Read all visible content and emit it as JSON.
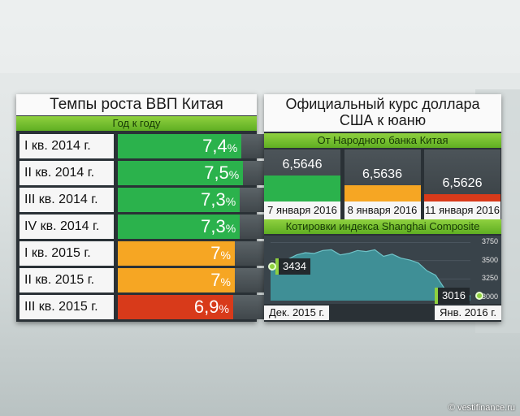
{
  "gdp_panel": {
    "title": "Темпы роста ВВП Китая",
    "subtitle": "Год к году",
    "unit": "%"
  },
  "rate_panel": {
    "title": "Официальный курс доллара США к юаню",
    "subtitle": "От Народного банка Китая",
    "index_title": "Котировки индекса Shanghai Composite",
    "index_start_label": "Дек. 2015 г.",
    "index_end_label": "Янв. 2016 г.",
    "index_start_value": "3434",
    "index_end_value": "3016"
  },
  "credit": "© vestifinance.ru",
  "colors": {
    "green": "#2bb24c",
    "orange": "#f6a623",
    "red": "#d83a1a",
    "accent": "#8fd13f"
  },
  "chart_data": [
    {
      "type": "bar",
      "title": "Темпы роста ВВП Китая",
      "subtitle": "Год к году",
      "categories": [
        "I кв. 2014 г.",
        "II кв. 2014 г.",
        "III кв. 2014 г.",
        "IV кв. 2014 г.",
        "I кв. 2015 г.",
        "II кв. 2015 г.",
        "III кв. 2015 г."
      ],
      "values": [
        7.4,
        7.5,
        7.3,
        7.3,
        7,
        7,
        6.9
      ],
      "labels": [
        "7,4",
        "7,5",
        "7,3",
        "7,3",
        "7",
        "7",
        "6,9"
      ],
      "bar_colors": [
        "#2bb24c",
        "#2bb24c",
        "#2bb24c",
        "#2bb24c",
        "#f6a623",
        "#f6a623",
        "#d83a1a"
      ],
      "xlim": [
        0,
        8.8
      ]
    },
    {
      "type": "bar",
      "title": "Официальный курс доллара США к юаню",
      "subtitle": "От Народного банка Китая",
      "categories": [
        "7 января 2016 г.",
        "8 января 2016 г.",
        "11 января 2016 г."
      ],
      "values": [
        6.5646,
        6.5636,
        6.5626
      ],
      "labels": [
        "6,5646",
        "6,5636",
        "6,5626"
      ],
      "bar_colors": [
        "#2bb24c",
        "#f6a623",
        "#d83a1a"
      ],
      "ylim": [
        6.5618,
        6.5648
      ]
    },
    {
      "type": "area",
      "title": "Котировки индекса Shanghai Composite",
      "x": [
        0,
        1,
        2,
        3,
        4,
        5,
        6,
        7,
        8,
        9,
        10,
        11,
        12,
        13,
        14,
        15,
        16,
        17,
        18,
        19,
        20,
        21,
        22,
        23
      ],
      "values": [
        3434,
        3455,
        3520,
        3580,
        3610,
        3600,
        3640,
        3650,
        3580,
        3600,
        3640,
        3625,
        3650,
        3560,
        3590,
        3535,
        3510,
        3470,
        3360,
        3300,
        3120,
        3030,
        3016,
        3016
      ],
      "yticks": [
        3000,
        3250,
        3500,
        3750
      ],
      "ylim": [
        2950,
        3800
      ],
      "xlabels": [
        "Дек. 2015 г.",
        "Янв. 2016 г."
      ]
    }
  ]
}
